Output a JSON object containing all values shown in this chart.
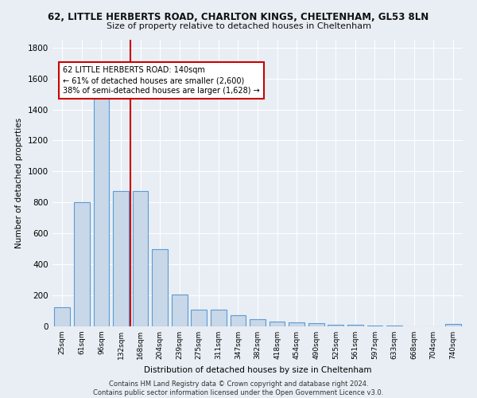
{
  "title1": "62, LITTLE HERBERTS ROAD, CHARLTON KINGS, CHELTENHAM, GL53 8LN",
  "title2": "Size of property relative to detached houses in Cheltenham",
  "xlabel": "Distribution of detached houses by size in Cheltenham",
  "ylabel": "Number of detached properties",
  "categories": [
    "25sqm",
    "61sqm",
    "96sqm",
    "132sqm",
    "168sqm",
    "204sqm",
    "239sqm",
    "275sqm",
    "311sqm",
    "347sqm",
    "382sqm",
    "418sqm",
    "454sqm",
    "490sqm",
    "525sqm",
    "561sqm",
    "597sqm",
    "633sqm",
    "668sqm",
    "704sqm",
    "740sqm"
  ],
  "values": [
    125,
    800,
    1500,
    875,
    875,
    500,
    205,
    110,
    110,
    70,
    45,
    30,
    25,
    20,
    10,
    8,
    5,
    3,
    2,
    2,
    15
  ],
  "bar_color": "#c8d8e8",
  "bar_edge_color": "#5b9bd5",
  "vline_color": "#cc0000",
  "annotation_text": "62 LITTLE HERBERTS ROAD: 140sqm\n← 61% of detached houses are smaller (2,600)\n38% of semi-detached houses are larger (1,628) →",
  "annotation_box_color": "#ffffff",
  "annotation_box_edge": "#cc0000",
  "ylim": [
    0,
    1850
  ],
  "yticks": [
    0,
    200,
    400,
    600,
    800,
    1000,
    1200,
    1400,
    1600,
    1800
  ],
  "bg_color": "#e8eef4",
  "grid_color": "#ffffff",
  "footer": "Contains HM Land Registry data © Crown copyright and database right 2024.\nContains public sector information licensed under the Open Government Licence v3.0."
}
